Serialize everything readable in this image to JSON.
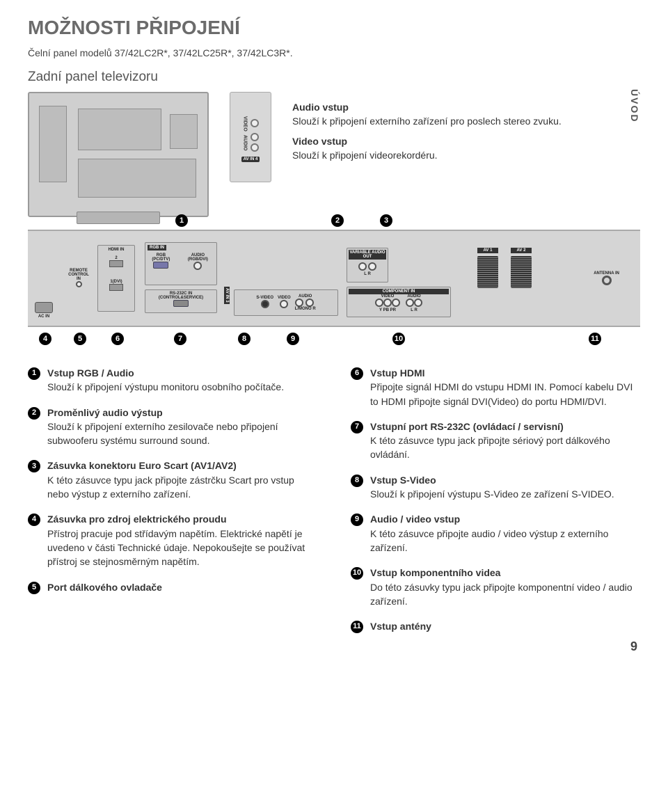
{
  "page": {
    "title": "MOŽNOSTI PŘIPOJENÍ",
    "model_line": "Čelní panel modelů 37/42LC2R*, 37/42LC25R*, 37/42LC3R*.",
    "rear_label": "Zadní panel televizoru",
    "side_tab": "ÚVOD",
    "page_number": "9"
  },
  "av_module": {
    "video": "VIDEO",
    "audio": "AUDIO",
    "lr": "L/MONO    R",
    "avin4": "AV IN 4"
  },
  "top_desc": {
    "audio_h": "Audio vstup",
    "audio_b": "Slouží k připojení externího zařízení pro poslech stereo zvuku.",
    "video_h": "Video vstup",
    "video_b": "Slouží k připojení videorekordéru."
  },
  "rear_labels": {
    "hdmi_in": "HDMI IN",
    "hdmi2": "2",
    "hdmi1dvi": "1(DVI)",
    "rgb_in": "RGB IN",
    "rgb_pcdtv": "RGB (PC/DTV)",
    "audio_rgbdvi": "AUDIO (RGB/DVI)",
    "rs232c": "RS-232C IN (CONTROL&SERVICE)",
    "remote": "REMOTE CONTROL IN",
    "acin": "AC IN",
    "avin3": "AV IN 3",
    "svideo": "S-VIDEO",
    "video": "VIDEO",
    "audio": "AUDIO",
    "lmono": "L/MONO",
    "r": "R",
    "var_audio": "VARIABLE AUDIO OUT",
    "lr": "L   R",
    "component": "COMPONENT IN",
    "comp_video": "VIDEO",
    "comp_audio": "AUDIO",
    "ypbpr": "Y   PB   PR",
    "av1": "AV 1",
    "av2": "AV 2",
    "antenna": "ANTENNA IN"
  },
  "callouts": {
    "top": [
      "1",
      "2",
      "3"
    ],
    "bottom": [
      "4",
      "5",
      "6",
      "7",
      "8",
      "9",
      "10",
      "11"
    ]
  },
  "items_left": [
    {
      "n": "1",
      "h": "Vstup RGB / Audio",
      "b": "Slouží k připojení výstupu monitoru osobního počítače."
    },
    {
      "n": "2",
      "h": "Proměnlivý audio výstup",
      "b": "Slouží k připojení externího zesilovače nebo připojení subwooferu systému surround sound."
    },
    {
      "n": "3",
      "h": "Zásuvka konektoru Euro Scart (AV1/AV2)",
      "b": "K této zásuvce typu jack připojte zástrčku Scart pro vstup nebo výstup z externího zařízení."
    },
    {
      "n": "4",
      "h": "Zásuvka pro zdroj elektrického proudu",
      "b": "Přístroj pracuje pod střídavým napětím. Elektrické napětí je uvedeno v části Technické údaje. Nepokoušejte se používat přístroj se stejnosměrným napětím."
    },
    {
      "n": "5",
      "h": "Port dálkového ovladače",
      "b": ""
    }
  ],
  "items_right": [
    {
      "n": "6",
      "h": "Vstup HDMI",
      "b": "Připojte signál HDMI do vstupu HDMI IN. Pomocí kabelu DVI to HDMI připojte signál DVI(Video) do portu HDMI/DVI."
    },
    {
      "n": "7",
      "h": "Vstupní port RS-232C (ovládací / servisní)",
      "b": "K této zásuvce typu jack připojte sériový port dálkového ovládání."
    },
    {
      "n": "8",
      "h": "Vstup S-Video",
      "b": "Slouží k  připojení výstupu S-Video ze zařízení S-VIDEO."
    },
    {
      "n": "9",
      "h": "Audio / video vstup",
      "b": "K této zásuvce připojte audio / video výstup z  externího zařízení."
    },
    {
      "n": "10",
      "h": "Vstup komponentního videa",
      "b": "Do této zásuvky typu jack připojte komponentní video / audio zařízení."
    },
    {
      "n": "11",
      "h": "Vstup antény",
      "b": ""
    }
  ],
  "colors": {
    "heading_gray": "#6b6b6b",
    "panel_gray": "#d5d5d5",
    "badge_bg": "#000000"
  }
}
